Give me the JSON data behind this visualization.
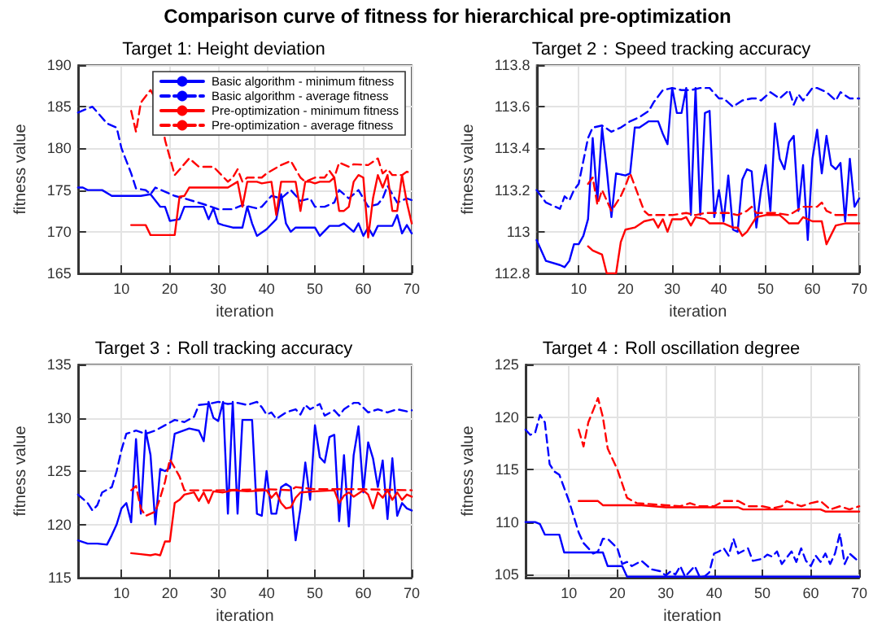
{
  "chart_data": [
    {
      "type": "line",
      "title": "Target 1: Height deviation",
      "xlabel": "iteration",
      "ylabel": "fitness value",
      "annotations": [
        "Comparison curve of fitness for hierarchical pre-optimization"
      ],
      "xlim": [
        1,
        70
      ],
      "xticks": [
        10,
        20,
        30,
        40,
        50,
        60,
        70
      ],
      "ylim": [
        165,
        190
      ],
      "yticks": [
        165,
        170,
        175,
        180,
        185,
        190
      ],
      "grid": true,
      "legend": "top right",
      "series": [
        {
          "name": "Basic algorithm - minimum fitness",
          "color": "#0000ff",
          "line_style": "solid",
          "x": [
            1,
            2,
            3,
            6,
            8,
            14,
            16,
            18,
            19,
            20,
            22,
            23,
            27,
            28,
            29,
            30,
            31,
            33,
            35,
            36,
            37,
            38,
            40,
            42,
            43,
            44,
            45,
            46,
            50,
            51,
            53,
            55,
            56,
            58,
            59,
            60,
            61,
            62,
            63,
            66,
            67,
            68,
            69,
            70
          ],
          "values": [
            175.3,
            175.3,
            175,
            175,
            174.3,
            174.3,
            174.5,
            173,
            173,
            171.3,
            171.5,
            173,
            173,
            171.5,
            172.8,
            171,
            170.8,
            170.5,
            170.5,
            173,
            171,
            169.5,
            170.3,
            171.5,
            174.5,
            171,
            170,
            170.5,
            170.5,
            169.5,
            170.7,
            170.7,
            171,
            170,
            171,
            169.5,
            170.5,
            169.5,
            170.7,
            170.7,
            172,
            169.8,
            170.8,
            169.8
          ]
        },
        {
          "name": "Basic algorithm - average fitness",
          "color": "#0000ff",
          "line_style": "dashed",
          "x": [
            1,
            3,
            4,
            7,
            9,
            10,
            12,
            13,
            15,
            16,
            17,
            19,
            21,
            23,
            27,
            30,
            33,
            35,
            38,
            39,
            41,
            43,
            45,
            47,
            49,
            50,
            52,
            54,
            55,
            57,
            59,
            61,
            63,
            64,
            65,
            67,
            69,
            70
          ],
          "values": [
            184.3,
            184.8,
            185,
            183,
            182.5,
            180,
            177,
            175.2,
            175,
            174.5,
            175.3,
            174.8,
            174.3,
            174,
            173.3,
            172.7,
            172.7,
            173.2,
            172.8,
            173,
            174.3,
            174,
            175,
            173.7,
            174,
            173,
            173,
            173.5,
            175,
            174,
            175,
            173,
            173.3,
            174,
            175.5,
            173.5,
            174,
            173.8
          ]
        },
        {
          "name": "Pre-optimization - minimum fitness",
          "color": "#ff0000",
          "line_style": "solid",
          "x": [
            12,
            15,
            16,
            21,
            22,
            23,
            24,
            32,
            34,
            35,
            36,
            38,
            39,
            41,
            42,
            43,
            46,
            47,
            48,
            49,
            50,
            51,
            53,
            54,
            55,
            56,
            57,
            58,
            59,
            60,
            61,
            62,
            63,
            64,
            65,
            66,
            67,
            68,
            69,
            70
          ],
          "values": [
            170.8,
            170.8,
            169.6,
            169.6,
            174.2,
            174.3,
            175.3,
            175.3,
            176,
            173,
            176,
            176,
            175.8,
            176,
            172,
            176,
            176,
            172.5,
            176,
            176,
            175.8,
            176,
            176,
            176.5,
            172.5,
            172.5,
            173,
            176,
            176.8,
            176.5,
            169.3,
            174,
            176.8,
            175.3,
            176.8,
            172.5,
            172.5,
            176.8,
            173.5,
            171
          ]
        },
        {
          "name": "Pre-optimization - average fitness",
          "color": "#ff0000",
          "line_style": "dashed",
          "x": [
            12,
            13,
            14,
            16,
            18,
            19,
            21,
            24,
            26,
            29,
            32,
            33,
            34,
            35,
            36,
            39,
            40,
            43,
            45,
            47,
            48,
            50,
            52,
            53,
            54,
            55,
            57,
            58,
            61,
            63,
            64,
            65,
            66,
            68,
            69,
            70
          ],
          "values": [
            184.5,
            182,
            185.5,
            187,
            185,
            181,
            176.8,
            178.8,
            177.8,
            177.8,
            176,
            176.5,
            177.5,
            176,
            176.5,
            176.5,
            177,
            178,
            178.5,
            176.5,
            176,
            176.5,
            176.5,
            177.3,
            176.5,
            178.3,
            177.8,
            178.1,
            178,
            178.8,
            177,
            177.5,
            176.8,
            176.8,
            177.2,
            177
          ]
        }
      ]
    },
    {
      "type": "line",
      "title": "Target 2：Speed tracking accuracy",
      "xlabel": "iteration",
      "ylabel": "fitness value",
      "xlim": [
        1,
        70
      ],
      "xticks": [
        10,
        20,
        30,
        40,
        50,
        60,
        70
      ],
      "ylim": [
        112.8,
        113.8
      ],
      "yticks": [
        112.8,
        113,
        113.2,
        113.4,
        113.6,
        113.8
      ],
      "grid": true,
      "series": [
        {
          "color": "#0000ff",
          "line_style": "solid",
          "x": [
            1,
            3,
            6,
            7,
            8,
            9,
            10,
            11,
            12,
            13,
            14,
            15,
            16,
            17,
            18,
            20,
            21,
            22,
            23,
            25,
            27,
            28,
            29,
            30,
            31,
            32,
            33,
            34,
            35,
            36,
            37,
            38,
            39,
            40,
            41,
            42,
            43,
            44,
            45,
            46,
            47,
            48,
            49,
            50,
            51,
            52,
            53,
            54,
            55,
            56,
            57,
            58,
            59,
            60,
            61,
            62,
            63,
            64,
            65,
            66,
            67,
            68,
            69,
            70
          ],
          "values": [
            112.96,
            112.86,
            112.84,
            112.83,
            112.86,
            112.94,
            112.94,
            112.98,
            113.06,
            113.45,
            113.15,
            113.5,
            113.3,
            113.07,
            113.28,
            113.27,
            113.28,
            113.5,
            113.5,
            113.53,
            113.53,
            113.47,
            113.42,
            113.69,
            113.57,
            113.57,
            113.69,
            113.08,
            113.69,
            113.08,
            113.57,
            113.58,
            113.07,
            113.2,
            113.05,
            113.27,
            113.01,
            113,
            113.25,
            113.3,
            113.29,
            113.02,
            113.2,
            113.32,
            113.1,
            113.52,
            113.35,
            113.3,
            113.43,
            113.46,
            113.1,
            113.32,
            112.96,
            113.35,
            113.49,
            113.28,
            113.46,
            113.32,
            113.3,
            113.33,
            113.05,
            113.35,
            113.12,
            113.16
          ]
        },
        {
          "color": "#0000ff",
          "line_style": "dashed",
          "x": [
            1,
            3,
            5,
            6,
            7,
            8,
            9,
            10,
            12,
            13,
            15,
            17,
            19,
            21,
            23,
            25,
            26,
            28,
            30,
            32,
            34,
            36,
            38,
            40,
            41,
            43,
            45,
            47,
            48,
            49,
            51,
            53,
            55,
            56,
            57,
            58,
            60,
            61,
            63,
            65,
            66,
            68,
            70
          ],
          "values": [
            113.2,
            113.14,
            113.12,
            113.11,
            113.17,
            113.15,
            113.2,
            113.23,
            113.45,
            113.5,
            113.51,
            113.48,
            113.5,
            113.53,
            113.55,
            113.58,
            113.62,
            113.68,
            113.69,
            113.68,
            113.68,
            113.69,
            113.69,
            113.64,
            113.64,
            113.6,
            113.63,
            113.64,
            113.64,
            113.63,
            113.67,
            113.64,
            113.68,
            113.61,
            113.66,
            113.63,
            113.69,
            113.69,
            113.67,
            113.63,
            113.67,
            113.64,
            113.64
          ]
        },
        {
          "color": "#ff0000",
          "line_style": "solid",
          "x": [
            12,
            13,
            15,
            16,
            18,
            19,
            20,
            22,
            24,
            26,
            27,
            28,
            29,
            30,
            32,
            33,
            34,
            35,
            37,
            38,
            41,
            43,
            44,
            45,
            46,
            48,
            50,
            53,
            54,
            55,
            57,
            58,
            60,
            62,
            63,
            65,
            67,
            70
          ],
          "values": [
            112.93,
            112.91,
            112.89,
            112.8,
            112.8,
            112.95,
            113.01,
            113.02,
            113.05,
            113.06,
            113.02,
            113.06,
            113,
            113.06,
            113.06,
            113.07,
            113.03,
            113.07,
            113.06,
            113.04,
            113.04,
            113.02,
            113.02,
            112.98,
            113,
            113.07,
            113.08,
            113.08,
            113.06,
            113.04,
            113.04,
            113.07,
            113.05,
            113.05,
            112.94,
            113.03,
            113.04,
            113.04
          ]
        },
        {
          "color": "#ff0000",
          "line_style": "dashed",
          "x": [
            12,
            13,
            14,
            15,
            17,
            19,
            20,
            21,
            23,
            24,
            25,
            30,
            33,
            35,
            37,
            40,
            42,
            44,
            46,
            47,
            48,
            52,
            55,
            58,
            61,
            62,
            63,
            65,
            70
          ],
          "values": [
            113.23,
            113.26,
            113.13,
            113.2,
            113.1,
            113.17,
            113.22,
            113.28,
            113.16,
            113.1,
            113.08,
            113.08,
            113.09,
            113.08,
            113.09,
            113.09,
            113.09,
            113.08,
            113.1,
            113.12,
            113.09,
            113.09,
            113.08,
            113.12,
            113.12,
            113.14,
            113.1,
            113.08,
            113.08
          ]
        }
      ]
    },
    {
      "type": "line",
      "title": "Target 3：Roll tracking accuracy",
      "xlabel": "iteration",
      "ylabel": "fitness value",
      "xlim": [
        1,
        70
      ],
      "xticks": [
        10,
        20,
        30,
        40,
        50,
        60,
        70
      ],
      "ylim": [
        115,
        135
      ],
      "yticks": [
        115,
        120,
        125,
        130,
        135
      ],
      "grid": true,
      "series": [
        {
          "color": "#0000ff",
          "line_style": "solid",
          "x": [
            1,
            3,
            5,
            7,
            8,
            9,
            10,
            11,
            12,
            13,
            14,
            15,
            16,
            17,
            18,
            19,
            20,
            21,
            24,
            26,
            27,
            28,
            29,
            30,
            31,
            32,
            33,
            34,
            35,
            37,
            38,
            39,
            40,
            41,
            42,
            43,
            44,
            45,
            46,
            47,
            48,
            49,
            50,
            51,
            52,
            53,
            54,
            55,
            56,
            57,
            58,
            59,
            60,
            61,
            62,
            63,
            64,
            65,
            66,
            67,
            68,
            69,
            70
          ],
          "values": [
            118.5,
            118.2,
            118.2,
            118.1,
            119,
            120,
            121.5,
            122,
            120.2,
            128,
            121,
            128.8,
            126.5,
            120,
            125.2,
            125,
            125.3,
            128.5,
            129,
            128.8,
            127.8,
            131.5,
            130,
            129.7,
            131.5,
            121,
            131.5,
            121,
            129.8,
            129.8,
            121,
            120.8,
            125,
            121,
            121,
            123.5,
            123.8,
            123.5,
            118.5,
            121.5,
            125.8,
            122.3,
            129.3,
            126.3,
            125.8,
            128.2,
            128.4,
            120.3,
            126.5,
            119.8,
            126.5,
            129.2,
            123,
            127.7,
            126.2,
            123.5,
            126,
            120.5,
            126.2,
            120.8,
            122,
            121.5,
            121.3
          ]
        },
        {
          "color": "#0000ff",
          "line_style": "dashed",
          "x": [
            1,
            3,
            4,
            5,
            6,
            8,
            9,
            10,
            11,
            13,
            15,
            17,
            19,
            21,
            23,
            25,
            26,
            28,
            30,
            32,
            34,
            36,
            38,
            39,
            40,
            41,
            42,
            44,
            46,
            47,
            48,
            49,
            51,
            52,
            54,
            55,
            56,
            58,
            59,
            61,
            63,
            65,
            67,
            69,
            70
          ],
          "values": [
            122.8,
            122,
            121.3,
            121.8,
            123,
            123.5,
            125,
            127,
            128.5,
            128.8,
            128.5,
            128.8,
            129.3,
            129.8,
            129.6,
            130.1,
            131.2,
            131.3,
            131.5,
            131.3,
            131.4,
            131.2,
            131.5,
            131,
            130.3,
            130.5,
            129.9,
            130.5,
            130.8,
            130.3,
            131.2,
            130.8,
            131.3,
            130.2,
            130.7,
            130.2,
            130.8,
            131.4,
            131.4,
            130.5,
            130.8,
            130.5,
            130.8,
            130.6,
            130.7
          ]
        },
        {
          "color": "#ff0000",
          "line_style": "solid",
          "x": [
            12,
            14,
            16,
            17,
            18,
            19,
            20,
            21,
            22,
            23,
            25,
            26,
            27,
            28,
            29,
            31,
            33,
            36,
            40,
            41,
            42,
            43,
            44,
            45,
            46,
            47,
            50,
            54,
            55,
            56,
            57,
            58,
            60,
            61,
            62,
            63,
            64,
            65,
            66,
            67,
            68,
            69,
            70
          ],
          "values": [
            117.3,
            117.2,
            117.1,
            117.2,
            117.1,
            118.4,
            118.4,
            122,
            122.3,
            122.8,
            123,
            122.2,
            123,
            122,
            123.1,
            123,
            123.2,
            123.1,
            123.2,
            122.5,
            123,
            122,
            121.5,
            121.6,
            122.5,
            123,
            123.1,
            123.2,
            122,
            122.7,
            123,
            122.6,
            123.2,
            122.8,
            121.5,
            123,
            122.5,
            123.2,
            122.3,
            123,
            122.3,
            122.8,
            122.6
          ]
        },
        {
          "color": "#ff0000",
          "line_style": "dashed",
          "x": [
            12,
            13,
            14,
            15,
            17,
            18,
            19,
            20,
            22,
            23,
            30,
            40,
            45,
            46,
            50,
            60,
            70
          ],
          "values": [
            123.2,
            123.6,
            121.5,
            120.8,
            121.2,
            122.5,
            124,
            126.1,
            124.5,
            123.2,
            123.2,
            123.3,
            123.2,
            123.5,
            123.3,
            123.3,
            123.2
          ]
        }
      ]
    },
    {
      "type": "line",
      "title": "Target 4：Roll oscillation degree",
      "xlabel": "iteration",
      "ylabel": "fitness value",
      "xlim": [
        1,
        70
      ],
      "xticks": [
        10,
        20,
        30,
        40,
        50,
        60,
        70
      ],
      "ylim": [
        104.7,
        125
      ],
      "yticks": [
        105,
        110,
        115,
        120,
        125
      ],
      "grid": true,
      "series": [
        {
          "color": "#0000ff",
          "line_style": "solid",
          "x": [
            1,
            3,
            4,
            5,
            8,
            9,
            17,
            18,
            21,
            22,
            70
          ],
          "values": [
            110,
            110,
            109.8,
            108.8,
            108.8,
            107.1,
            107.1,
            105.8,
            105.8,
            104.8,
            104.8
          ]
        },
        {
          "color": "#0000ff",
          "line_style": "dashed",
          "x": [
            1,
            2,
            3,
            4,
            5,
            6,
            7,
            8,
            10,
            12,
            13,
            15,
            16,
            17,
            18,
            20,
            21,
            22,
            23,
            25,
            27,
            29,
            30,
            31,
            32,
            33,
            34,
            36,
            37,
            38,
            39,
            40,
            41,
            42,
            43,
            44,
            45,
            47,
            48,
            50,
            51,
            52,
            53,
            54,
            56,
            57,
            58,
            59,
            60,
            61,
            62,
            63,
            64,
            65,
            66,
            67,
            68,
            69,
            70
          ],
          "values": [
            118.8,
            118.3,
            118.5,
            120.2,
            119.5,
            115.5,
            114.8,
            114.5,
            112,
            109,
            108,
            107,
            107.2,
            108.4,
            108.4,
            107.5,
            106,
            106.2,
            105.8,
            106.3,
            105.5,
            105.3,
            104.9,
            105.3,
            105,
            105.8,
            104.8,
            105.8,
            104.8,
            104.8,
            105.2,
            107,
            107.2,
            107.5,
            106.8,
            108.4,
            107,
            107.5,
            106.3,
            106.5,
            106.9,
            106.7,
            107.2,
            106,
            107.2,
            106.2,
            107.5,
            106.3,
            105.8,
            106.8,
            106.2,
            107,
            106,
            107,
            108.9,
            106,
            107,
            106.6,
            106.2
          ]
        },
        {
          "color": "#ff0000",
          "line_style": "solid",
          "x": [
            12,
            16,
            17,
            25,
            30,
            45,
            46,
            62,
            63,
            70
          ],
          "values": [
            112,
            112,
            111.6,
            111.6,
            111.4,
            111.4,
            111.2,
            111.2,
            111,
            111
          ]
        },
        {
          "color": "#ff0000",
          "line_style": "dashed",
          "x": [
            12,
            13,
            14,
            16,
            17,
            18,
            20,
            22,
            24,
            30,
            33,
            35,
            37,
            40,
            42,
            45,
            47,
            50,
            52,
            54,
            55,
            58,
            60,
            62,
            64,
            66,
            68,
            70
          ],
          "values": [
            118.8,
            117.2,
            119.5,
            121.8,
            120,
            117,
            115,
            112.3,
            111.8,
            111.6,
            111.5,
            111.8,
            111.5,
            111.5,
            112,
            112,
            111.5,
            111.5,
            111.3,
            111.5,
            112,
            111.5,
            111.8,
            112,
            111.2,
            111.5,
            111.2,
            111.5
          ]
        }
      ]
    }
  ]
}
